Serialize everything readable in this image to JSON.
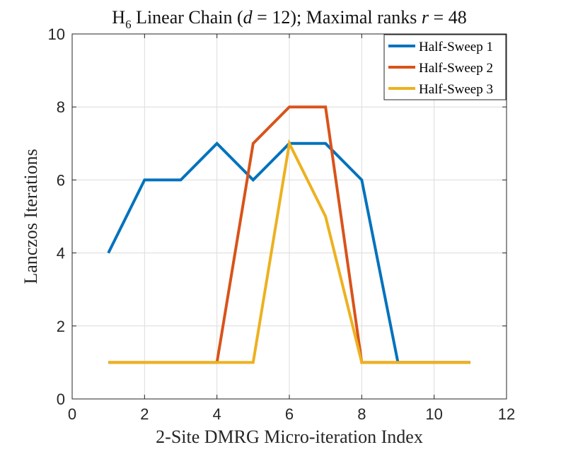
{
  "chart_data": {
    "type": "line",
    "title_parts": {
      "prefix": "H",
      "subscript": "6",
      "middle": " Linear Chain (",
      "d_symbol": "d",
      "d_value": " = 12); Maximal ranks ",
      "r_symbol": "r",
      "r_value": " = 48"
    },
    "xlabel": "2-Site DMRG Micro-iteration Index",
    "ylabel": "Lanczos Iterations",
    "xlim": [
      0,
      12
    ],
    "ylim": [
      0,
      10
    ],
    "xticks": [
      0,
      2,
      4,
      6,
      8,
      10,
      12
    ],
    "yticks": [
      0,
      2,
      4,
      6,
      8,
      10
    ],
    "grid": true,
    "legend_position": "top-right",
    "x": [
      1,
      2,
      3,
      4,
      5,
      6,
      7,
      8,
      9,
      10,
      11
    ],
    "series": [
      {
        "name": "Half-Sweep 1",
        "color": "#0072BD",
        "values": [
          4,
          6,
          6,
          7,
          6,
          7,
          7,
          6,
          1,
          1,
          1
        ]
      },
      {
        "name": "Half-Sweep 2",
        "color": "#D95319",
        "values": [
          1,
          1,
          1,
          1,
          7,
          8,
          8,
          1,
          1,
          1,
          1
        ]
      },
      {
        "name": "Half-Sweep 3",
        "color": "#EDB120",
        "values": [
          1,
          1,
          1,
          1,
          1,
          7,
          5,
          1,
          1,
          1,
          1
        ]
      }
    ]
  }
}
